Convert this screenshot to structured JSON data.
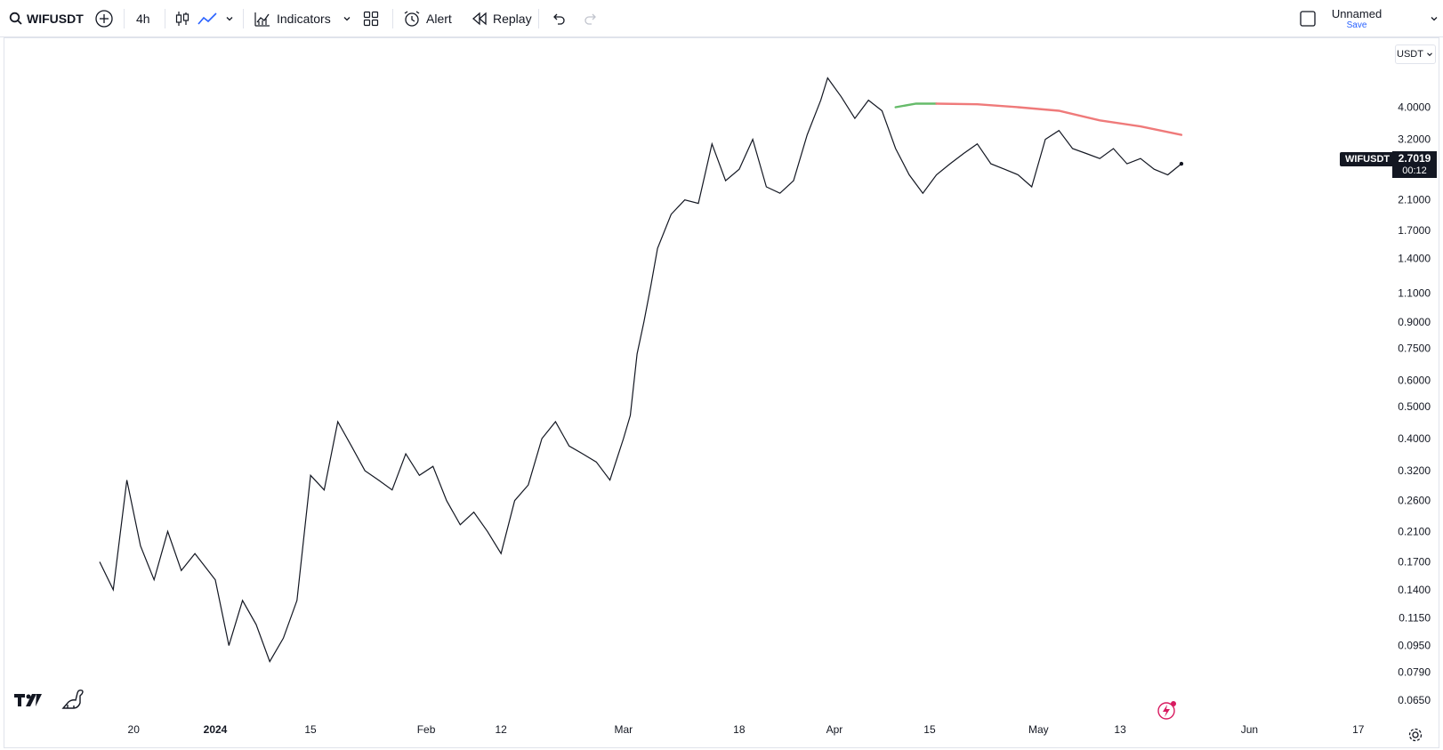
{
  "toolbar": {
    "symbol": "WIFUSDT",
    "interval": "4h",
    "indicators_label": "Indicators",
    "alert_label": "Alert",
    "replay_label": "Replay",
    "layout_name": "Unnamed",
    "save_label": "Save"
  },
  "price_scale": {
    "currency": "USDT",
    "ticks": [
      "4.0000",
      "3.2000",
      "2.1000",
      "1.7000",
      "1.4000",
      "1.1000",
      "0.9000",
      "0.7500",
      "0.6000",
      "0.5000",
      "0.4000",
      "0.3200",
      "0.2600",
      "0.2100",
      "0.1700",
      "0.1400",
      "0.1150",
      "0.0950",
      "0.0790",
      "0.0650"
    ],
    "symbol_tag": "WIFUSDT",
    "last_price": "2.7019",
    "countdown": "00:12"
  },
  "time_axis": {
    "labels": [
      "20",
      "2024",
      "15",
      "Feb",
      "12",
      "Mar",
      "18",
      "Apr",
      "15",
      "May",
      "13",
      "Jun",
      "17"
    ]
  },
  "colors": {
    "price_line": "#131722",
    "ma_rising": "#66bb6a",
    "ma_falling": "#ef7a7a",
    "accent": "#2962ff",
    "logo_bolt": "#d81b60"
  },
  "icons": [
    "search-icon",
    "add-symbol-icon",
    "candles-icon",
    "line-chart-icon",
    "chevron-down-icon",
    "indicators-icon",
    "layouts-icon",
    "alert-icon",
    "replay-icon",
    "undo-icon",
    "redo-icon",
    "fullscreen-icon",
    "tradingview-logo",
    "dino-icon",
    "bolt-icon",
    "settings-icon"
  ],
  "chart_data": {
    "type": "line",
    "title": "",
    "xlabel": "",
    "ylabel": "",
    "y_scale": "log",
    "ylim": [
      0.06,
      5.2
    ],
    "x_range": [
      "2023-12-15",
      "2024-06-22"
    ],
    "series": [
      {
        "x": [
          "2023-12-15",
          "2023-12-17",
          "2023-12-19",
          "2023-12-21",
          "2023-12-23",
          "2023-12-25",
          "2023-12-27",
          "2023-12-29",
          "2024-01-01",
          "2024-01-03",
          "2024-01-05",
          "2024-01-07",
          "2024-01-09",
          "2024-01-11",
          "2024-01-13",
          "2024-01-15",
          "2024-01-17",
          "2024-01-19",
          "2024-01-21",
          "2024-01-23",
          "2024-01-25",
          "2024-01-27",
          "2024-01-29",
          "2024-01-31",
          "2024-02-02",
          "2024-02-04",
          "2024-02-06",
          "2024-02-08",
          "2024-02-10",
          "2024-02-12",
          "2024-02-14",
          "2024-02-16",
          "2024-02-18",
          "2024-02-20",
          "2024-02-22",
          "2024-02-24",
          "2024-02-26",
          "2024-02-28",
          "2024-03-01",
          "2024-03-02",
          "2024-03-03",
          "2024-03-04",
          "2024-03-05",
          "2024-03-06",
          "2024-03-08",
          "2024-03-10",
          "2024-03-12",
          "2024-03-14",
          "2024-03-16",
          "2024-03-18",
          "2024-03-20",
          "2024-03-22",
          "2024-03-24",
          "2024-03-26",
          "2024-03-28",
          "2024-03-30",
          "2024-03-31",
          "2024-04-02",
          "2024-04-04",
          "2024-04-06",
          "2024-04-08",
          "2024-04-10",
          "2024-04-12",
          "2024-04-14",
          "2024-04-16",
          "2024-04-18",
          "2024-04-20",
          "2024-04-22",
          "2024-04-24",
          "2024-04-26",
          "2024-04-28",
          "2024-04-30",
          "2024-05-02",
          "2024-05-04",
          "2024-05-06",
          "2024-05-08",
          "2024-05-10",
          "2024-05-12",
          "2024-05-14",
          "2024-05-16",
          "2024-05-18",
          "2024-05-20",
          "2024-05-22"
        ],
        "y": [
          0.17,
          0.14,
          0.3,
          0.19,
          0.15,
          0.21,
          0.16,
          0.18,
          0.15,
          0.095,
          0.13,
          0.11,
          0.085,
          0.1,
          0.13,
          0.31,
          0.28,
          0.45,
          0.38,
          0.32,
          0.3,
          0.28,
          0.36,
          0.31,
          0.33,
          0.26,
          0.22,
          0.24,
          0.21,
          0.18,
          0.26,
          0.29,
          0.4,
          0.45,
          0.38,
          0.36,
          0.34,
          0.3,
          0.4,
          0.47,
          0.72,
          0.9,
          1.15,
          1.5,
          1.9,
          2.1,
          2.05,
          3.1,
          2.4,
          2.6,
          3.2,
          2.3,
          2.2,
          2.4,
          3.3,
          4.2,
          4.9,
          4.3,
          3.7,
          4.2,
          3.9,
          3.0,
          2.5,
          2.2,
          2.5,
          2.7,
          2.9,
          3.1,
          2.7,
          2.6,
          2.5,
          2.3,
          3.2,
          3.4,
          3.0,
          2.9,
          2.8,
          3.0,
          2.7,
          2.8,
          2.6,
          2.5,
          2.7
        ]
      },
      {
        "x": [
          "2024-04-10",
          "2024-04-13",
          "2024-04-16",
          "2024-04-22",
          "2024-04-28",
          "2024-05-04",
          "2024-05-10",
          "2024-05-16",
          "2024-05-22"
        ],
        "y": [
          4.0,
          4.1,
          4.1,
          4.08,
          4.0,
          3.9,
          3.65,
          3.5,
          3.3
        ]
      }
    ]
  }
}
